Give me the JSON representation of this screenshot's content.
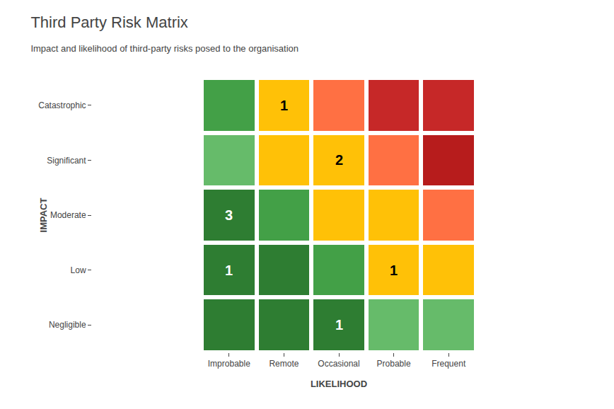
{
  "chart_data": {
    "type": "heatmap",
    "title": "Third Party Risk Matrix",
    "subtitle": "Impact and likelihood of third-party risks posed to the organisation",
    "xlabel": "LIKELIHOOD",
    "ylabel": "IMPACT",
    "x": [
      "Improbable",
      "Remote",
      "Occasional",
      "Probable",
      "Frequent"
    ],
    "y": [
      "Negligible",
      "Low",
      "Moderate",
      "Significant",
      "Catastrophic"
    ],
    "cells": [
      [
        "#2e7d32",
        "#2e7d32",
        "#2e7d32",
        "#66bb6a",
        "#66bb6a"
      ],
      [
        "#2e7d32",
        "#2e7d32",
        "#43a047",
        "#ffc107",
        "#ffc107"
      ],
      [
        "#2e7d32",
        "#43a047",
        "#ffc107",
        "#ffc107",
        "#ff7043"
      ],
      [
        "#66bb6a",
        "#ffc107",
        "#ffc107",
        "#ff7043",
        "#b71c1c"
      ],
      [
        "#43a047",
        "#ffc107",
        "#ff7043",
        "#c62828",
        "#c62828"
      ]
    ],
    "annotations": [
      {
        "x": "Remote",
        "y": "Catastrophic",
        "text": "1",
        "color": "black"
      },
      {
        "x": "Occasional",
        "y": "Significant",
        "text": "2",
        "color": "black"
      },
      {
        "x": "Improbable",
        "y": "Moderate",
        "text": "3",
        "color": "white"
      },
      {
        "x": "Improbable",
        "y": "Low",
        "text": "1",
        "color": "white"
      },
      {
        "x": "Probable",
        "y": "Low",
        "text": "1",
        "color": "black"
      },
      {
        "x": "Occasional",
        "y": "Negligible",
        "text": "1",
        "color": "white"
      }
    ],
    "tick_labels": true,
    "grid": false,
    "legend": "none"
  }
}
